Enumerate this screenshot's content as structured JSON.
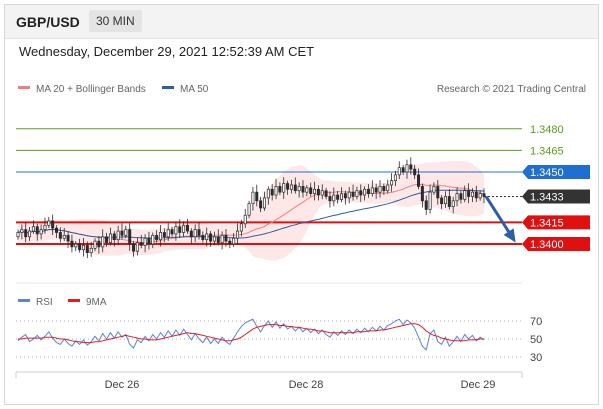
{
  "header": {
    "pair": "GBP/USD",
    "timeframe": "30 MIN"
  },
  "timestamp": "Wednesday, December 29, 2021 12:52:39 AM CET",
  "credit": "Research © 2021 Trading Central",
  "legend": {
    "ma20_label": "MA 20 + Bollinger Bands",
    "ma50_label": "MA 50",
    "rsi_label": "RSI",
    "ma9_label": "9MA"
  },
  "colors": {
    "ma20": "#f08080",
    "ma50": "#2b5ea7",
    "bands": "#fde3e3",
    "resistance": "#5a9e1c",
    "support": "#e01010",
    "pivot": "#1f6fd1",
    "current": "#333333",
    "rsi": "#5b84d8",
    "rsi_ma": "#e02020",
    "arrow": "#2b5ea7"
  },
  "chart_data": [
    {
      "type": "candlestick",
      "title": "",
      "x_tick_labels": [
        "Dec 26",
        "Dec 28",
        "Dec 29"
      ],
      "ylim": [
        1.3375,
        1.35
      ],
      "grid": false,
      "legend_placement": "top-left",
      "levels": [
        {
          "value": 1.348,
          "label": "1.3480",
          "role": "resistance"
        },
        {
          "value": 1.3465,
          "label": "1.3465",
          "role": "resistance"
        },
        {
          "value": 1.345,
          "label": "1.3450",
          "role": "pivot"
        },
        {
          "value": 1.3433,
          "label": "1.3433",
          "role": "current"
        },
        {
          "value": 1.3415,
          "label": "1.3415",
          "role": "support"
        },
        {
          "value": 1.34,
          "label": "1.3400",
          "role": "support"
        }
      ],
      "forecast_arrow": {
        "from": 1.3433,
        "to": 1.34,
        "direction": "down"
      },
      "close_series": [
        1.3408,
        1.341,
        1.3405,
        1.3409,
        1.3412,
        1.3407,
        1.341,
        1.3413,
        1.3416,
        1.3411,
        1.3408,
        1.3404,
        1.3406,
        1.3402,
        1.3398,
        1.34,
        1.3396,
        1.3399,
        1.3394,
        1.3397,
        1.3402,
        1.3398,
        1.3405,
        1.3401,
        1.3407,
        1.3403,
        1.3409,
        1.3406,
        1.341,
        1.34,
        1.3395,
        1.3401,
        1.3399,
        1.3404,
        1.34,
        1.3406,
        1.3403,
        1.3408,
        1.3405,
        1.341,
        1.3407,
        1.3412,
        1.3408,
        1.3413,
        1.3409,
        1.3405,
        1.341,
        1.3406,
        1.3403,
        1.3407,
        1.3402,
        1.3405,
        1.3401,
        1.3406,
        1.3402,
        1.34,
        1.3404,
        1.3409,
        1.3414,
        1.342,
        1.3428,
        1.3436,
        1.343,
        1.3425,
        1.3432,
        1.3438,
        1.3434,
        1.344,
        1.3436,
        1.3442,
        1.3438,
        1.3441,
        1.3437,
        1.344,
        1.3436,
        1.3439,
        1.3435,
        1.3438,
        1.3434,
        1.3437,
        1.3433,
        1.343,
        1.3434,
        1.3431,
        1.3435,
        1.3432,
        1.3436,
        1.3433,
        1.3437,
        1.3434,
        1.3438,
        1.3435,
        1.3439,
        1.3436,
        1.344,
        1.3437,
        1.3441,
        1.3444,
        1.3448,
        1.3453,
        1.345,
        1.3455,
        1.3452,
        1.3448,
        1.344,
        1.343,
        1.3424,
        1.3436,
        1.344,
        1.3432,
        1.3428,
        1.3433,
        1.3426,
        1.343,
        1.3435,
        1.3431,
        1.3437,
        1.3433,
        1.3436,
        1.3432,
        1.3435,
        1.3433
      ]
    },
    {
      "type": "line",
      "title": "",
      "series": [
        {
          "name": "RSI",
          "values": [
            48,
            52,
            55,
            47,
            50,
            54,
            49,
            53,
            58,
            51,
            46,
            44,
            50,
            45,
            42,
            48,
            44,
            49,
            43,
            47,
            53,
            48,
            56,
            50,
            57,
            51,
            58,
            52,
            55,
            44,
            40,
            49,
            46,
            53,
            48,
            55,
            50,
            57,
            52,
            59,
            53,
            60,
            54,
            61,
            55,
            49,
            56,
            50,
            46,
            52,
            45,
            50,
            45,
            52,
            47,
            44,
            51,
            58,
            64,
            68,
            70,
            72,
            64,
            58,
            65,
            70,
            63,
            69,
            62,
            67,
            61,
            64,
            59,
            63,
            58,
            62,
            57,
            61,
            56,
            60,
            55,
            52,
            58,
            54,
            59,
            55,
            60,
            56,
            61,
            57,
            62,
            58,
            63,
            59,
            64,
            60,
            65,
            67,
            70,
            72,
            66,
            71,
            68,
            62,
            52,
            42,
            38,
            56,
            60,
            47,
            44,
            52,
            42,
            47,
            53,
            47,
            55,
            50,
            54,
            48,
            52,
            49
          ]
        },
        {
          "name": "9MA",
          "values": [
            50,
            50,
            51,
            51,
            51,
            51,
            51,
            52,
            52,
            52,
            51,
            50,
            50,
            49,
            48,
            47,
            47,
            46,
            46,
            46,
            47,
            47,
            48,
            49,
            50,
            51,
            52,
            53,
            54,
            53,
            52,
            51,
            50,
            50,
            49,
            49,
            49,
            50,
            51,
            52,
            53,
            54,
            55,
            56,
            57,
            56,
            56,
            55,
            54,
            53,
            52,
            51,
            50,
            49,
            48,
            48,
            49,
            50,
            52,
            55,
            58,
            61,
            63,
            64,
            65,
            66,
            66,
            66,
            65,
            65,
            64,
            64,
            63,
            63,
            62,
            61,
            61,
            60,
            59,
            59,
            58,
            57,
            57,
            57,
            57,
            57,
            57,
            57,
            58,
            58,
            58,
            59,
            59,
            59,
            60,
            60,
            61,
            62,
            63,
            64,
            65,
            66,
            67,
            67,
            66,
            63,
            59,
            56,
            54,
            53,
            51,
            50,
            49,
            48,
            48,
            48,
            48,
            49,
            49,
            49,
            50,
            50
          ]
        }
      ],
      "ylim": [
        20,
        80
      ],
      "reference_levels": [
        {
          "value": 70,
          "label": "70"
        },
        {
          "value": 50,
          "label": "50"
        },
        {
          "value": 30,
          "label": "30"
        }
      ]
    }
  ]
}
